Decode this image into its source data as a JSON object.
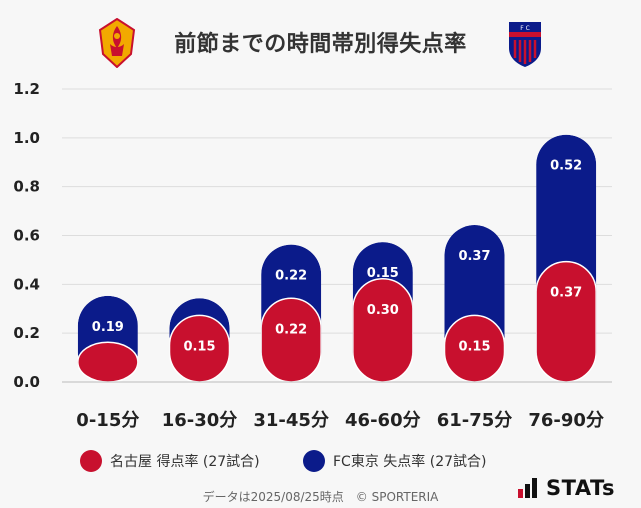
{
  "title": "前節までの時間帯別得失点率",
  "colors": {
    "home": "#c8102e",
    "away": "#0b1b8a",
    "grid": "#dddddd",
    "background": "#f7f7f7"
  },
  "legend": {
    "home_label": "名古屋 得点率 (27試合)",
    "away_label": "FC東京 失点率 (27試合)"
  },
  "footer": "データは2025/08/25時点　© SPORTERIA",
  "brand": "STATs",
  "chart_data": {
    "type": "bar",
    "stacked": true,
    "title": "前節までの時間帯別得失点率",
    "categories": [
      "0-15分",
      "16-30分",
      "31-45分",
      "46-60分",
      "61-75分",
      "76-90分"
    ],
    "series": [
      {
        "name": "名古屋 得点率 (27試合)",
        "values": [
          0.04,
          0.15,
          0.22,
          0.3,
          0.15,
          0.37
        ],
        "labels": [
          "",
          "0.15",
          "0.22",
          "0.30",
          "0.15",
          "0.37"
        ]
      },
      {
        "name": "FC東京 失点率 (27試合)",
        "values": [
          0.19,
          0.07,
          0.22,
          0.15,
          0.37,
          0.52
        ],
        "labels": [
          "0.19",
          "",
          "0.22",
          "0.15",
          "0.37",
          "0.52"
        ]
      }
    ],
    "ylim": [
      0,
      1.2
    ],
    "yticks": [
      "0.0",
      "0.2",
      "0.4",
      "0.6",
      "0.8",
      "1.0",
      "1.2"
    ],
    "xlabel": "",
    "ylabel": "",
    "grid": true,
    "legend_position": "bottom"
  }
}
